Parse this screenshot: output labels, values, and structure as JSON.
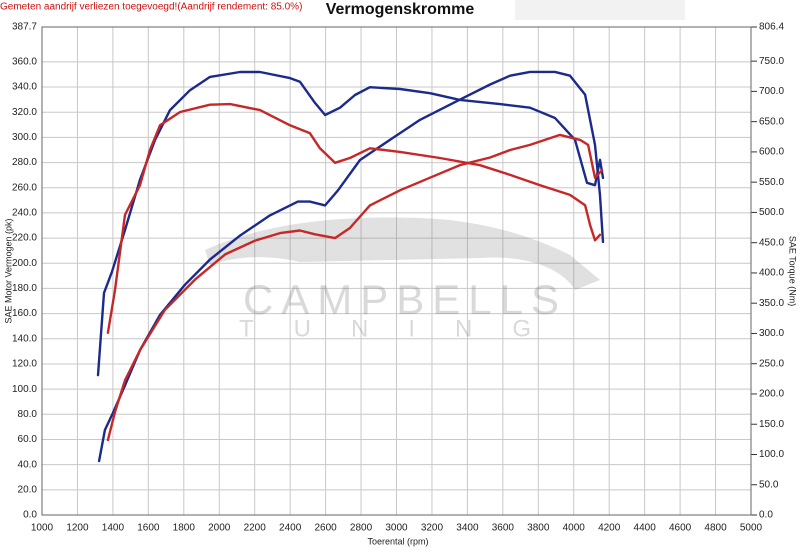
{
  "chart_data": {
    "type": "line",
    "title": "Vermogenskromme",
    "subtitle": "Gemeten aandrijf verliezen toegevoegd!(Aandrijf rendement: 85.0%)",
    "x_label": "Toerental (rpm)",
    "y_label": "SAE Motor Vermogen (pk)",
    "y2_label": "SAE Torque (Nm)",
    "watermark": [
      "CAMPBELLS",
      "TUNING"
    ],
    "grid": true,
    "xlim": [
      1000,
      5000
    ],
    "xticks": [
      1000,
      1200,
      1400,
      1600,
      1800,
      2000,
      2200,
      2400,
      2600,
      2800,
      3000,
      3200,
      3400,
      3600,
      3800,
      4000,
      4200,
      4400,
      4600,
      4800,
      5000
    ],
    "ylim": [
      0,
      387.7
    ],
    "yticks": [
      {
        "value": 0,
        "label": "0.0"
      },
      {
        "value": 20,
        "label": "20.0"
      },
      {
        "value": 40,
        "label": "40.0"
      },
      {
        "value": 60,
        "label": "60.0"
      },
      {
        "value": 80,
        "label": "80.0"
      },
      {
        "value": 100,
        "label": "100.0"
      },
      {
        "value": 120,
        "label": "120.0"
      },
      {
        "value": 140,
        "label": "140.0"
      },
      {
        "value": 160,
        "label": "160.0"
      },
      {
        "value": 180,
        "label": "180.0"
      },
      {
        "value": 200,
        "label": "200.0"
      },
      {
        "value": 220,
        "label": "220.0"
      },
      {
        "value": 240,
        "label": "240.0"
      },
      {
        "value": 260,
        "label": "260.0"
      },
      {
        "value": 280,
        "label": "280.0"
      },
      {
        "value": 300,
        "label": "300.0"
      },
      {
        "value": 320,
        "label": "320.0"
      },
      {
        "value": 340,
        "label": "340.0"
      },
      {
        "value": 360,
        "label": "360.0"
      },
      387.7
    ],
    "y2lim": [
      0,
      806.4
    ],
    "y2ticks": [
      {
        "value": 0,
        "label": "0.0"
      },
      {
        "value": 50,
        "label": "50.0"
      },
      {
        "value": 100,
        "label": "100.0"
      },
      {
        "value": 150,
        "label": "150.0"
      },
      {
        "value": 200,
        "label": "200.0"
      },
      {
        "value": 250,
        "label": "250.0"
      },
      {
        "value": 300,
        "label": "300.0"
      },
      {
        "value": 350,
        "label": "350.0"
      },
      {
        "value": 400,
        "label": "400.0"
      },
      {
        "value": 450,
        "label": "450.0"
      },
      {
        "value": 500,
        "label": "500.0"
      },
      {
        "value": 550,
        "label": "550.0"
      },
      {
        "value": 600,
        "label": "600.0"
      },
      {
        "value": 650,
        "label": "650.0"
      },
      {
        "value": 700,
        "label": "700.0"
      },
      {
        "value": 750,
        "label": "750.0"
      },
      806.4
    ],
    "series": [
      {
        "color": "#1c2a8c",
        "axis": "y",
        "x": [
          1322,
          1355,
          1400,
          1468,
          1553,
          1666,
          1807,
          1948,
          2117,
          2286,
          2444,
          2511,
          2597,
          2670,
          2794,
          2963,
          3133,
          3358,
          3528,
          3641,
          3753,
          3894,
          3979,
          4064,
          4120,
          4148,
          4165
        ],
        "values": [
          42.9,
          67.5,
          81,
          103,
          131,
          159,
          183,
          203,
          222,
          238,
          249,
          249,
          246,
          258,
          282,
          298,
          314,
          330,
          342,
          349,
          352,
          352,
          349,
          334,
          294,
          254,
          217
        ]
      },
      {
        "color": "#1c2a8c",
        "axis": "y2",
        "x": [
          1316,
          1350,
          1395,
          1468,
          1553,
          1638,
          1722,
          1835,
          1948,
          2117,
          2230,
          2399,
          2455,
          2540,
          2597,
          2681,
          2766,
          2850,
          3020,
          3189,
          3358,
          3584,
          3753,
          3894,
          4007,
          4075,
          4120,
          4148,
          4165
        ],
        "values": [
          231,
          367,
          402,
          471,
          554,
          620,
          669,
          702,
          724,
          732,
          732,
          722,
          716,
          681,
          661,
          673,
          694,
          707,
          704,
          697,
          686,
          679,
          673,
          656,
          620,
          549,
          545,
          587,
          557
        ]
      },
      {
        "color": "#c62828",
        "axis": "y",
        "x": [
          1372,
          1412,
          1468,
          1553,
          1694,
          1863,
          2033,
          2202,
          2343,
          2455,
          2540,
          2653,
          2737,
          2850,
          3020,
          3189,
          3358,
          3528,
          3641,
          3753,
          3922,
          4036,
          4081,
          4120,
          4160
        ],
        "values": [
          59.6,
          81.8,
          107,
          131,
          163,
          187,
          207,
          218,
          224,
          226,
          223,
          220,
          228,
          246,
          258,
          268,
          278,
          284,
          290,
          294,
          302,
          298,
          294,
          268,
          274
        ]
      },
      {
        "color": "#c62828",
        "axis": "y2",
        "x": [
          1372,
          1412,
          1468,
          1553,
          1609,
          1666,
          1779,
          1948,
          2061,
          2230,
          2399,
          2511,
          2568,
          2653,
          2737,
          2850,
          3020,
          3245,
          3471,
          3641,
          3810,
          3979,
          4064,
          4092,
          4120,
          4148
        ],
        "values": [
          301,
          372,
          496,
          545,
          603,
          644,
          666,
          678,
          679,
          669,
          644,
          631,
          606,
          582,
          590,
          606,
          600,
          590,
          578,
          562,
          545,
          529,
          512,
          479,
          454,
          463
        ]
      }
    ]
  }
}
